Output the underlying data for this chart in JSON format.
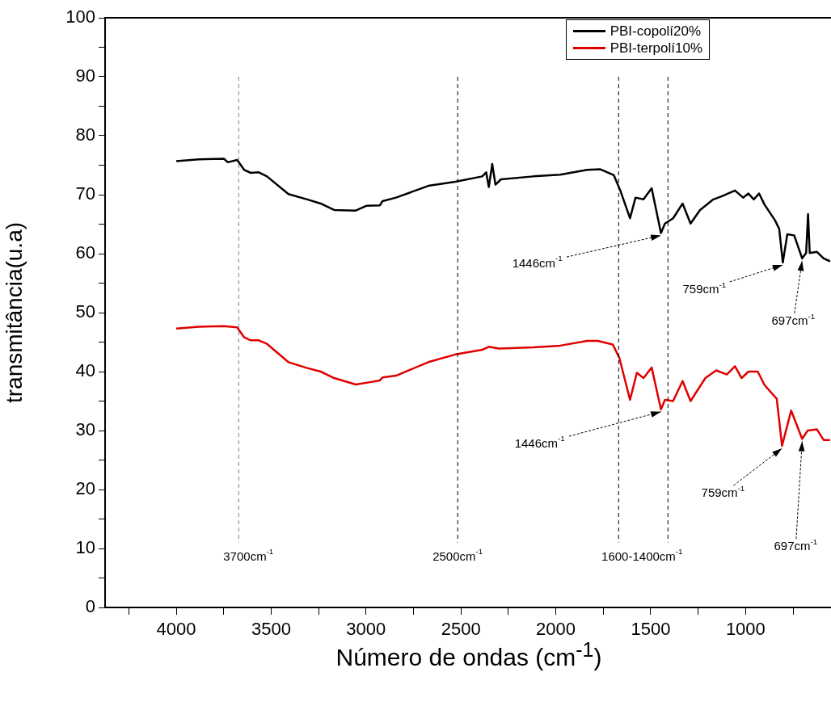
{
  "chart_data": {
    "type": "line",
    "xlabel": "Número de ondas (cm$^{-1}$)",
    "ylabel": "transmitância(u.a)",
    "xlim": [
      4375,
      550
    ],
    "xticks": [
      {
        "value": 4250,
        "label": null
      },
      4000,
      {
        "value": 3750,
        "label": null
      },
      3500,
      {
        "value": 3250,
        "label": null
      },
      3000,
      {
        "value": 2750,
        "label": null
      },
      2500,
      {
        "value": 2250,
        "label": null
      },
      2000,
      {
        "value": 1750,
        "label": null
      },
      1500,
      {
        "value": 1250,
        "label": null
      },
      1000,
      {
        "value": 750,
        "label": null
      }
    ],
    "ylim": [
      0,
      100
    ],
    "yticks": [
      0,
      {
        "value": 5,
        "label": null
      },
      10,
      {
        "value": 15,
        "label": null
      },
      20,
      {
        "value": 25,
        "label": null
      },
      30,
      {
        "value": 35,
        "label": null
      },
      40,
      {
        "value": 45,
        "label": null
      },
      50,
      {
        "value": 55,
        "label": null
      },
      60,
      {
        "value": 65,
        "label": null
      },
      70,
      {
        "value": 75,
        "label": null
      },
      80,
      {
        "value": 85,
        "label": null
      },
      90,
      {
        "value": 95,
        "label": null
      },
      100
    ],
    "legend": "top right",
    "series": [
      {
        "name": "PBI-copolí20%",
        "color": "#000000",
        "x": [
          4000,
          3880,
          3749,
          3728,
          3679,
          3642,
          3607,
          3565,
          3522,
          3409,
          3310,
          3239,
          3168,
          3054,
          2999,
          2927,
          2913,
          2842,
          2672,
          2530,
          2388,
          2367,
          2353,
          2335,
          2318,
          2289,
          2119,
          1977,
          1835,
          1765,
          1694,
          1659,
          1609,
          1580,
          1538,
          1495,
          1446,
          1425,
          1382,
          1332,
          1290,
          1240,
          1170,
          1127,
          1056,
          1013,
          985,
          957,
          929,
          900,
          844,
          823,
          804,
          780,
          744,
          702,
          681,
          671,
          662,
          624,
          589,
          555
        ],
        "values": [
          75.7,
          76.0,
          76.1,
          75.5,
          75.9,
          74.2,
          73.7,
          73.8,
          73.1,
          70.1,
          69.2,
          68.5,
          67.4,
          67.3,
          68.1,
          68.2,
          68.9,
          69.5,
          71.5,
          72.2,
          73.1,
          73.8,
          71.3,
          75.2,
          71.7,
          72.6,
          73.1,
          73.4,
          74.2,
          74.3,
          73.3,
          70.6,
          66.0,
          69.5,
          69.2,
          71.1,
          63.5,
          65.1,
          66.0,
          68.5,
          65.1,
          67.4,
          69.2,
          69.7,
          70.7,
          69.5,
          70.2,
          69.2,
          70.2,
          68.3,
          65.6,
          64.2,
          58.5,
          63.3,
          63.1,
          59.2,
          60.1,
          66.7,
          60.1,
          60.3,
          59.2,
          58.7
        ]
      },
      {
        "name": "PBI-terpolí10%",
        "color": "#e00000",
        "x": [
          4000,
          3880,
          3749,
          3679,
          3642,
          3607,
          3565,
          3522,
          3409,
          3310,
          3239,
          3168,
          3054,
          2999,
          2927,
          2913,
          2842,
          2672,
          2530,
          2388,
          2353,
          2300,
          2119,
          1977,
          1835,
          1779,
          1700,
          1665,
          1609,
          1573,
          1538,
          1495,
          1446,
          1425,
          1382,
          1332,
          1290,
          1212,
          1155,
          1099,
          1056,
          1021,
          985,
          936,
          900,
          836,
          808,
          760,
          702,
          673,
          624,
          589,
          555
        ],
        "values": [
          47.3,
          47.6,
          47.7,
          47.5,
          45.8,
          45.3,
          45.3,
          44.7,
          41.6,
          40.6,
          40.0,
          38.9,
          37.8,
          38.1,
          38.5,
          39.0,
          39.3,
          41.6,
          42.9,
          43.7,
          44.2,
          43.9,
          44.1,
          44.4,
          45.2,
          45.2,
          44.6,
          42.3,
          35.2,
          39.8,
          38.9,
          40.7,
          33.6,
          35.2,
          35.0,
          38.4,
          35.0,
          38.9,
          40.2,
          39.5,
          40.9,
          38.9,
          40.0,
          40.0,
          37.7,
          35.4,
          27.4,
          33.4,
          28.6,
          30.0,
          30.2,
          28.4,
          28.4
        ]
      }
    ],
    "ref_lines": [
      {
        "axis": "x",
        "value": 3671,
        "label": "3700cm$^{-1}$",
        "color": "#808080",
        "line_style": "dashed"
      },
      {
        "axis": "x",
        "value": 2517,
        "label": "2500cm$^{-1}$",
        "color": "#000000",
        "line_style": "dashed"
      },
      {
        "axis": "x",
        "value": 1669,
        "label": "1600-1400cm$^{-1}$",
        "color": "#000000",
        "line_style": "dashed"
      },
      {
        "axis": "x",
        "value": 1409,
        "label": null,
        "color": "#000000",
        "line_style": "dashed"
      }
    ],
    "annotations": [
      {
        "text": "1446cm$^{-1}$",
        "x": 1446,
        "y": 63.5
      },
      {
        "text": "759cm$^{-1}$",
        "x": 804,
        "y": 58.5
      },
      {
        "text": "697cm$^{-1}$",
        "x": 702,
        "y": 59.2
      },
      {
        "text": "1446cm$^{-1}$",
        "x": 1446,
        "y": 33.6
      },
      {
        "text": "759cm$^{-1}$",
        "x": 808,
        "y": 27.4
      },
      {
        "text": "697cm$^{-1}$",
        "x": 702,
        "y": 28.6
      }
    ]
  }
}
